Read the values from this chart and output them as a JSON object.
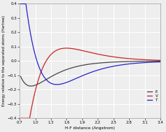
{
  "title": "",
  "xlabel": "H-F distance (Angstrom)",
  "ylabel": "Energy relative to the separated atoms (Hartree)",
  "xlim": [
    0.7,
    3.4
  ],
  "ylim": [
    -0.4,
    0.4
  ],
  "xticks": [
    0.7,
    1.0,
    1.3,
    1.6,
    1.9,
    2.2,
    2.5,
    2.8,
    3.1,
    3.4
  ],
  "yticks": [
    -0.4,
    -0.3,
    -0.2,
    -0.1,
    0.0,
    0.1,
    0.2,
    0.3,
    0.4
  ],
  "legend_labels": [
    "E",
    "V",
    "T"
  ],
  "E_color": "#444444",
  "V_color": "#cc2222",
  "T_color": "#2222cc",
  "bg_color": "#eeeeee",
  "grid_color": "#ffffff",
  "re": 0.917,
  "De": 0.175,
  "a_morse": 2.45
}
